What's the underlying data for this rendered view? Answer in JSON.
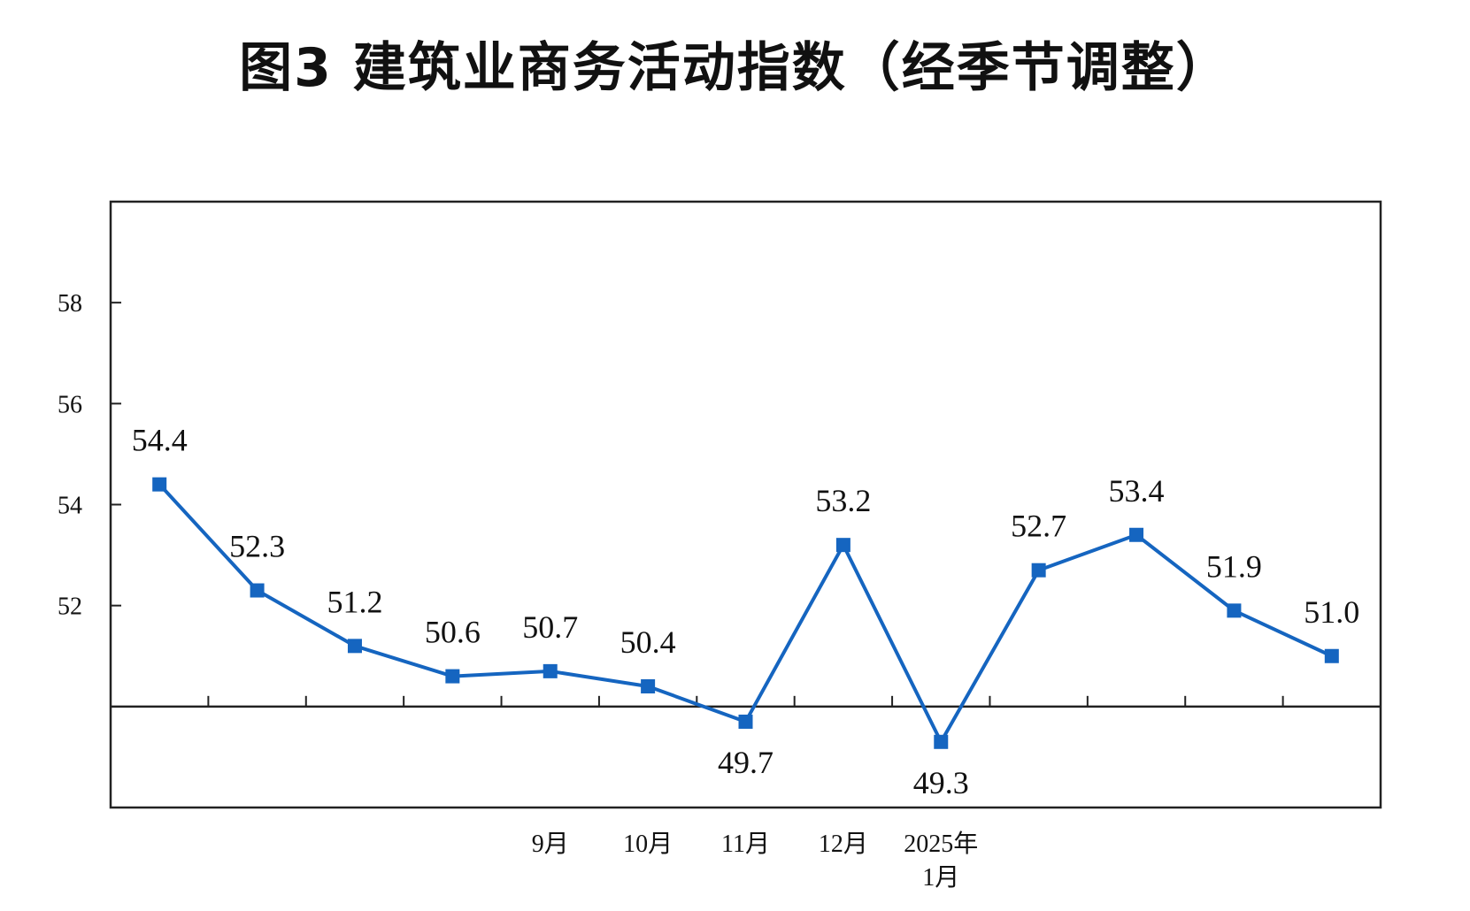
{
  "chart_data": {
    "type": "line",
    "title": "图3  建筑业商务活动指数（经季节调整）",
    "ylim": [
      48,
      60
    ],
    "y_ticks": [
      "52",
      "54",
      "56",
      "58"
    ],
    "baseline": 50,
    "grid": false,
    "legend": "none",
    "series_color": "#1565C0",
    "x_labels": [
      "",
      "",
      "",
      "",
      "9月",
      "10月",
      "11月",
      "12月",
      "2025年\n1月",
      "",
      "",
      "",
      ""
    ],
    "series": [
      {
        "values": [
          54.4,
          52.3,
          51.2,
          50.6,
          50.7,
          50.4,
          49.7,
          53.2,
          49.3,
          52.7,
          53.4,
          51.9,
          51.0
        ],
        "labels": [
          "54.4",
          "52.3",
          "51.2",
          "50.6",
          "50.7",
          "50.4",
          "49.7",
          "53.2",
          "49.3",
          "52.7",
          "53.4",
          "51.9",
          "51.0"
        ]
      }
    ]
  }
}
